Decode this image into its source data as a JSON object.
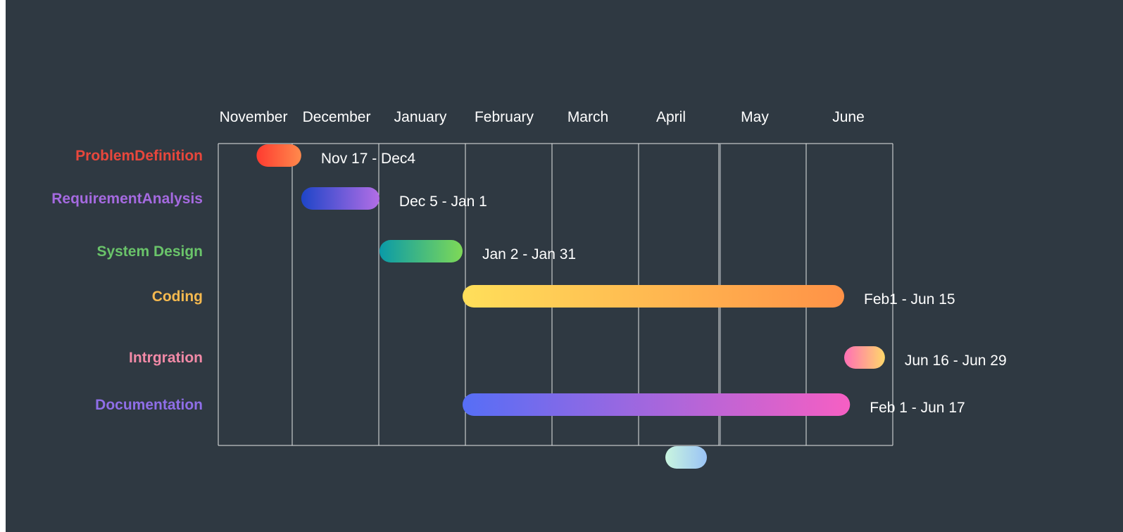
{
  "chart_data": {
    "type": "gantt",
    "months": [
      "November",
      "December",
      "January",
      "February",
      "March",
      "April",
      "May",
      "June"
    ],
    "tasks": [
      {
        "name": "ProblemDefinition",
        "label_color": "#e8473c",
        "range_label": "Nov 17 - Dec4",
        "start": "Nov 17",
        "end": "Dec 4",
        "gradient": [
          "#ff3b30",
          "#ff8a4c"
        ]
      },
      {
        "name": "RequirementAnalysis",
        "label_color": "#a56ae0",
        "range_label": "Dec 5 - Jan 1",
        "start": "Dec 5",
        "end": "Jan 1",
        "gradient": [
          "#1e45c8",
          "#b36ee6"
        ]
      },
      {
        "name": "System Design",
        "label_color": "#6ac46a",
        "range_label": "Jan 2 - Jan 31",
        "start": "Jan 2",
        "end": "Jan 31",
        "gradient": [
          "#0a9aa8",
          "#7ed957"
        ]
      },
      {
        "name": "Coding",
        "label_color": "#f5b94f",
        "range_label": "Feb1 - Jun 15",
        "start": "Feb 1",
        "end": "Jun 15",
        "gradient": [
          "#ffdf5a",
          "#ff9247"
        ]
      },
      {
        "name": "Intrgration",
        "label_color": "#f28aa7",
        "range_label": "Jun 16 - Jun 29",
        "start": "Jun 16",
        "end": "Jun 29",
        "gradient": [
          "#ff6fb5",
          "#ffd86a"
        ]
      },
      {
        "name": "Documentation",
        "label_color": "#8f6ee8",
        "range_label": "Feb 1 - Jun 17",
        "start": "Feb 1",
        "end": "Jun 17",
        "gradient": [
          "#566ef6",
          "#f65fc3"
        ]
      }
    ],
    "extra_bar": {
      "gradient": [
        "#c9f5df",
        "#9ac3f5"
      ]
    }
  }
}
